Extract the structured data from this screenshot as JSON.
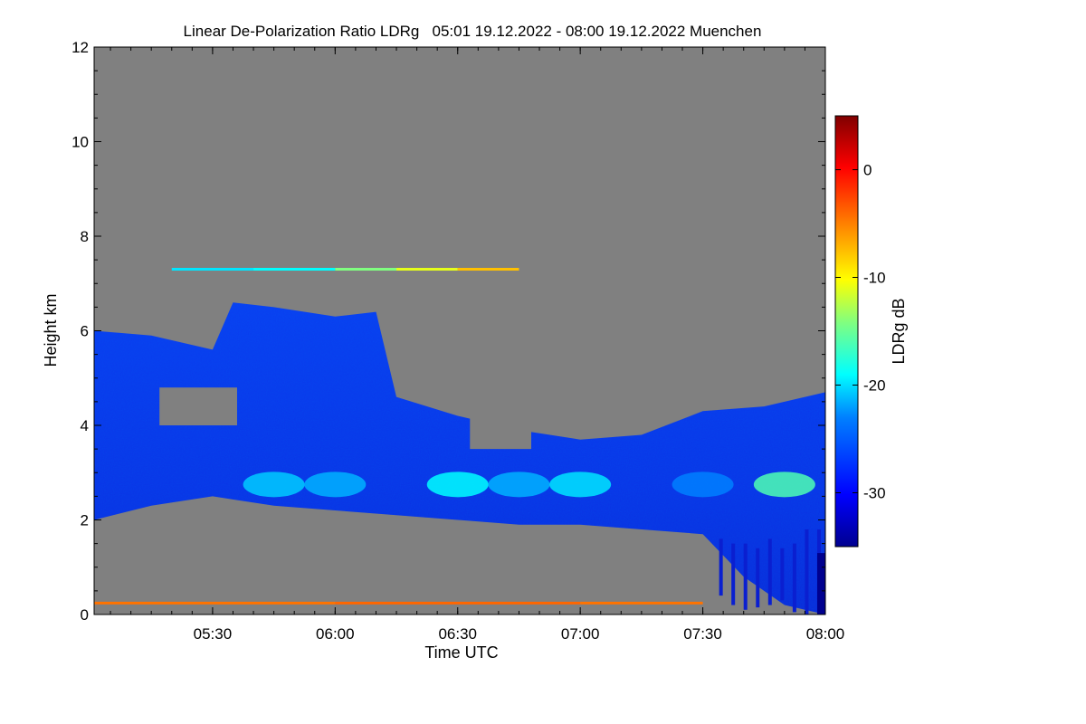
{
  "chart_data": {
    "type": "heatmap",
    "title": "Linear De-Polarization Ratio LDRg   05:01 19.12.2022 - 08:00 19.12.2022 Muenchen",
    "xlabel": "Time UTC",
    "ylabel": "Height km",
    "xlim": [
      "05:01",
      "08:00"
    ],
    "ylim": [
      0,
      12
    ],
    "x_ticks": [
      "05:30",
      "06:00",
      "06:30",
      "07:00",
      "07:30",
      "08:00"
    ],
    "x_tick_values_min": [
      29,
      59,
      89,
      119,
      149,
      179
    ],
    "y_ticks": [
      "0",
      "2",
      "4",
      "6",
      "8",
      "10",
      "12"
    ],
    "y_tick_values": [
      0,
      2,
      4,
      6,
      8,
      10,
      12
    ],
    "background_color": "#808080",
    "colorbar": {
      "label": "LDRg dB",
      "range": [
        -35,
        5
      ],
      "ticks": [
        "0",
        "-10",
        "-20",
        "-30"
      ],
      "tick_values": [
        0,
        -10,
        -20,
        -30
      ],
      "colormap": [
        "#00008f",
        "#0000ff",
        "#0080ff",
        "#00ffff",
        "#80ff80",
        "#ffff00",
        "#ff8000",
        "#ff0000",
        "#800000"
      ]
    },
    "features": [
      {
        "name": "main cloud top height km (approx.)",
        "time": [
          "05:01",
          "05:15",
          "05:30",
          "05:35",
          "05:45",
          "06:00",
          "06:10",
          "06:15",
          "06:30",
          "06:45",
          "07:00",
          "07:15",
          "07:30",
          "07:45",
          "08:00"
        ],
        "value": [
          6.0,
          5.9,
          5.6,
          6.6,
          6.5,
          6.3,
          6.4,
          4.6,
          4.2,
          3.9,
          3.7,
          3.8,
          4.3,
          4.4,
          4.7
        ]
      },
      {
        "name": "cloud base height km (approx.)",
        "time": [
          "05:01",
          "05:15",
          "05:30",
          "05:45",
          "06:00",
          "06:15",
          "06:30",
          "06:45",
          "07:00",
          "07:15",
          "07:30",
          "07:40",
          "07:50",
          "08:00"
        ],
        "value": [
          2.0,
          2.3,
          2.5,
          2.3,
          2.2,
          2.1,
          2.0,
          1.9,
          1.9,
          1.8,
          1.7,
          0.8,
          0.2,
          0.0
        ]
      },
      {
        "name": "thin layer near 7.3 km LDRg dB",
        "time": [
          "05:20",
          "05:40",
          "06:00",
          "06:15",
          "06:30",
          "06:45"
        ],
        "value": [
          -20,
          -22,
          -18,
          -12,
          -10,
          -5
        ]
      },
      {
        "name": "elevated LDRg band near 2.5-3 km LDRg dB",
        "time": [
          "05:45",
          "06:00",
          "06:30",
          "06:45",
          "07:00",
          "07:30",
          "07:50"
        ],
        "value": [
          -22,
          -23,
          -20,
          -23,
          -21,
          -25,
          -17
        ]
      },
      {
        "name": "near-surface layer ~0.25 km LDRg dB",
        "time": [
          "05:01",
          "06:00",
          "07:00",
          "07:30"
        ],
        "value": [
          -5,
          -4,
          -4,
          -5
        ]
      }
    ]
  }
}
